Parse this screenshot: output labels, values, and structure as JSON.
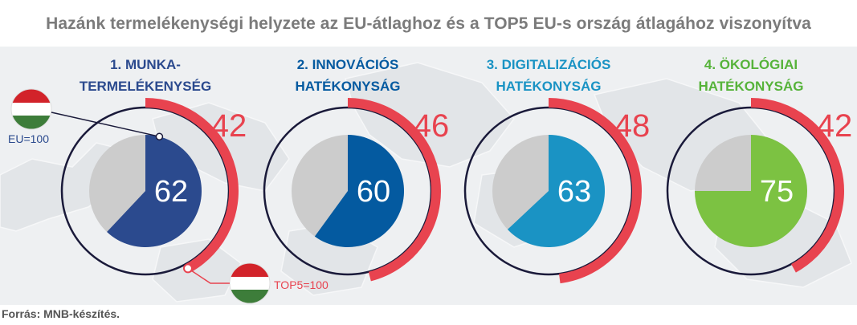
{
  "title": "Hazánk termelékenységi helyzete az EU-átlaghoz és a TOP5 EU-s ország átlagához viszonyítva",
  "source": "Forrás: MNB-készítés.",
  "legend": {
    "eu_label": "EU=100",
    "top5_label": "TOP5=100"
  },
  "colors": {
    "ring": "#e8434f",
    "grey": "#cccccc",
    "outline": "#1a1a3a"
  },
  "chart_data": [
    {
      "type": "pie",
      "title": "1. MUNKA-\nTERMELÉKENYSÉG",
      "eu_index": 62,
      "top5_index": 42,
      "color": "#2b4a8e",
      "title_color": "#2b4a8e"
    },
    {
      "type": "pie",
      "title": "2. INNOVÁCIÓS\nHATÉKONYSÁG",
      "eu_index": 60,
      "top5_index": 46,
      "color": "#045aa0",
      "title_color": "#045aa0"
    },
    {
      "type": "pie",
      "title": "3. DIGITALIZÁCIÓS\nHATÉKONYSÁG",
      "eu_index": 63,
      "top5_index": 48,
      "color": "#1a93c4",
      "title_color": "#1a93c4"
    },
    {
      "type": "pie",
      "title": "4. ÖKOLÓGIAI\nHATÉKONYSÁG",
      "eu_index": 75,
      "top5_index": 42,
      "color": "#7cc242",
      "title_color": "#56b33a"
    }
  ]
}
